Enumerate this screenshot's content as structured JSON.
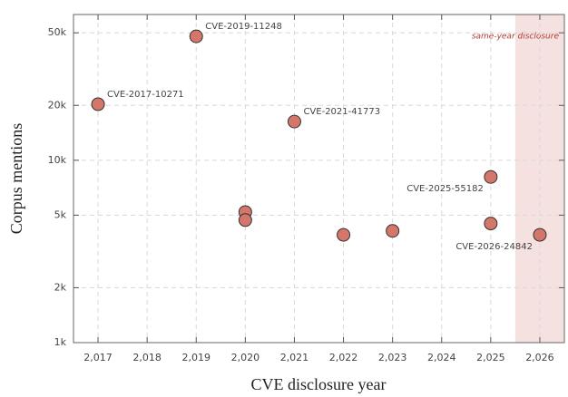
{
  "chart_data": {
    "type": "scatter",
    "x_label": "CVE disclosure year",
    "y_label": "Corpus mentions",
    "x": [
      2017,
      2019,
      2020,
      2020,
      2021,
      2022,
      2023,
      2025,
      2025,
      2026
    ],
    "values": [
      20300,
      47800,
      5200,
      4700,
      16300,
      3900,
      4100,
      8100,
      4500,
      3900
    ],
    "point_labels": [
      "CVE-2017-10271",
      "CVE-2019-11248",
      null,
      null,
      "CVE-2021-41773",
      null,
      null,
      "CVE-2025-55182",
      null,
      "CVE-2026-24842"
    ],
    "color": "#d4766a",
    "xlim": [
      2016.5,
      2026.5
    ],
    "xticks": [
      {
        "value": 2017,
        "label": "2,017"
      },
      {
        "value": 2018,
        "label": "2,018"
      },
      {
        "value": 2019,
        "label": "2,019"
      },
      {
        "value": 2020,
        "label": "2,020"
      },
      {
        "value": 2021,
        "label": "2,021"
      },
      {
        "value": 2022,
        "label": "2,022"
      },
      {
        "value": 2023,
        "label": "2,023"
      },
      {
        "value": 2024,
        "label": "2,024"
      },
      {
        "value": 2025,
        "label": "2,025"
      },
      {
        "value": 2026,
        "label": "2,026"
      }
    ],
    "ylim": [
      1000,
      63000
    ],
    "yticks": [
      {
        "value": 1000,
        "label": "1k"
      },
      {
        "value": 2000,
        "label": "2k"
      },
      {
        "value": 5000,
        "label": "5k"
      },
      {
        "value": 10000,
        "label": "10k"
      },
      {
        "value": 20000,
        "label": "20k"
      },
      {
        "value": 50000,
        "label": "50k"
      }
    ],
    "y_log": true,
    "grid": true,
    "highlight": {
      "xlim": [
        2025.5,
        2026.5
      ],
      "label": "same-year disclosure",
      "color": "#f6e1e1",
      "label_color": "#b03a32"
    }
  }
}
